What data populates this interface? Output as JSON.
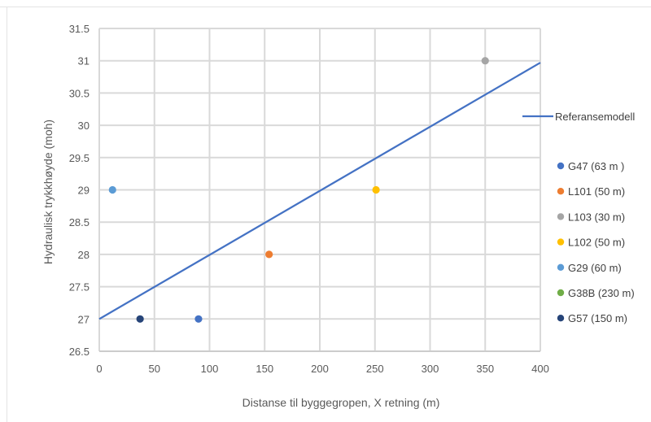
{
  "chart_data": {
    "type": "scatter",
    "title": "",
    "xlabel": "Distanse til byggegropen, X retning (m)",
    "ylabel": "Hydraulisk trykkhøyde (moh)",
    "xlim": [
      0,
      400
    ],
    "ylim": [
      26.5,
      31.5
    ],
    "x_ticks": [
      0,
      50,
      100,
      150,
      200,
      250,
      300,
      350,
      400
    ],
    "y_ticks": [
      26.5,
      27,
      27.5,
      28,
      28.5,
      29,
      29.5,
      30,
      30.5,
      31,
      31.5
    ],
    "x_tick_labels": [
      "0",
      "50",
      "100",
      "150",
      "200",
      "250",
      "300",
      "350",
      "400"
    ],
    "y_tick_labels": [
      "26.5",
      "27",
      "27.5",
      "28",
      "28.5",
      "29",
      "29.5",
      "30",
      "30.5",
      "31",
      "31.5"
    ],
    "grid": true,
    "legend_position": "right",
    "line_series": {
      "name": "Referansemodell",
      "color": "#4472C4",
      "x": [
        0,
        400
      ],
      "y": [
        27.0,
        30.97
      ]
    },
    "series": [
      {
        "name": "G47 (63 m )",
        "color": "#4472C4",
        "x": [
          90
        ],
        "y": [
          27
        ]
      },
      {
        "name": "L101 (50 m)",
        "color": "#ED7D31",
        "x": [
          154
        ],
        "y": [
          28
        ]
      },
      {
        "name": "L103 (30 m)",
        "color": "#A5A5A5",
        "x": [
          350
        ],
        "y": [
          31
        ]
      },
      {
        "name": "L102 (50 m)",
        "color": "#FFC000",
        "x": [
          251
        ],
        "y": [
          29
        ]
      },
      {
        "name": "G29 (60 m)",
        "color": "#5B9BD5",
        "x": [
          12
        ],
        "y": [
          29
        ]
      },
      {
        "name": "G38B (230 m)",
        "color": "#70AD47",
        "x": [],
        "y": []
      },
      {
        "name": "G57 (150 m)",
        "color": "#264478",
        "x": [
          37
        ],
        "y": [
          27
        ]
      }
    ]
  }
}
